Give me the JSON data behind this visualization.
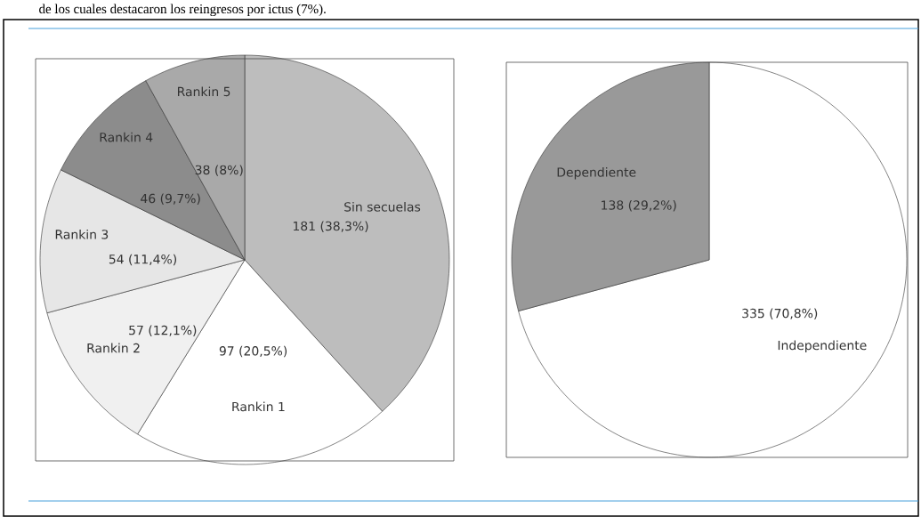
{
  "chart_data": [
    {
      "type": "pie",
      "categories": [
        "Sin secuelas",
        "Rankin 1",
        "Rankin 2",
        "Rankin 3",
        "Rankin 4",
        "Rankin 5"
      ],
      "values": [
        181,
        97,
        57,
        54,
        46,
        38
      ],
      "colors": [
        "#bdbdbd",
        "#ffffff",
        "#f0f0f0",
        "#e6e6e6",
        "#8c8c8c",
        "#a9a9a9"
      ],
      "value_labels": [
        "181 (38,3%)",
        "97 (20,5%)",
        "57 (12,1%)",
        "54 (11,4%)",
        "46 (9,7%)",
        "38 (8%)"
      ],
      "annotations": [
        "de los cuales destacaron los reingresos por ictus (7%)."
      ]
    },
    {
      "type": "pie",
      "categories": [
        "Independiente",
        "Dependiente"
      ],
      "values": [
        335,
        138
      ],
      "colors": [
        "#ffffff",
        "#999999"
      ],
      "value_labels": [
        "335 (70,8%)",
        "138 (29,2%)"
      ]
    }
  ]
}
